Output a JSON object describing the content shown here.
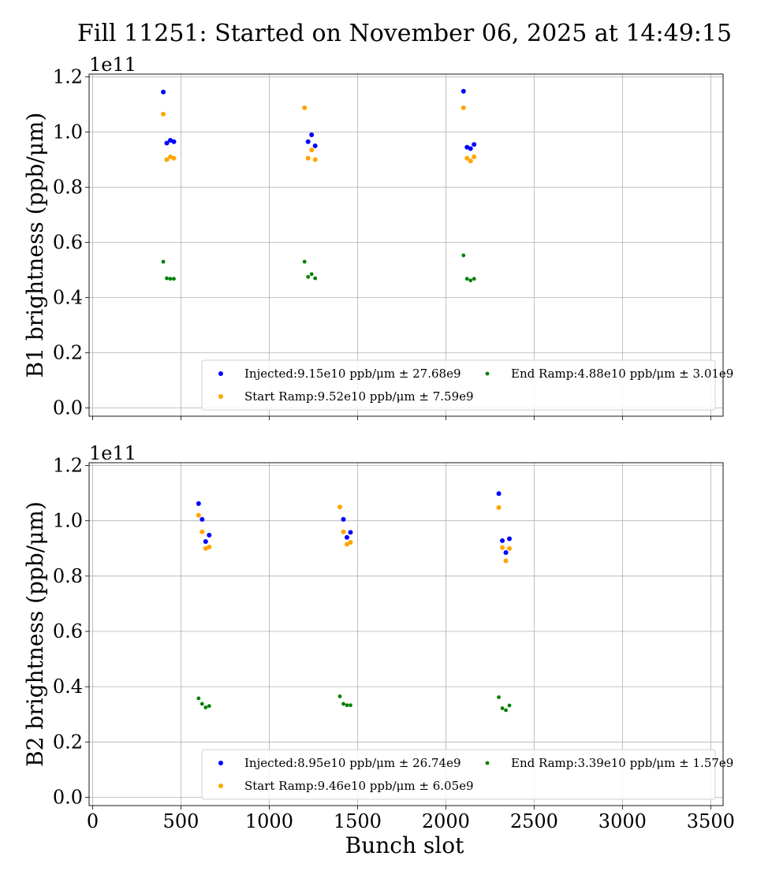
{
  "title": "Fill 11251: Started on November 06, 2025 at 14:49:15",
  "xlabel": "Bunch slot",
  "colors": {
    "injected": "#0000ff",
    "start_ramp": "#ffa500",
    "end_ramp": "#008000",
    "grid": "#b0b0b0"
  },
  "chart_data": [
    {
      "type": "scatter",
      "ylabel": "B1 brightness (ppb/μm)",
      "exponent_label": "1e11",
      "xlim": [
        -20,
        3570
      ],
      "ylim": [
        -3000000000.0,
        121000000000.0
      ],
      "xticks": [
        0,
        500,
        1000,
        1500,
        2000,
        2500,
        3000,
        3500
      ],
      "yticks": [
        0,
        20000000000.0,
        40000000000.0,
        60000000000.0,
        80000000000.0,
        100000000000.0,
        120000000000.0
      ],
      "ytick_labels": [
        "0.0",
        "0.2",
        "0.4",
        "0.6",
        "0.8",
        "1.0",
        "1.2"
      ],
      "grid": true,
      "legend_position": "lower-right",
      "series": [
        {
          "name": "Injected:9.15e10 ppb/μm ± 27.68e9",
          "color_key": "injected",
          "x": [
            400,
            420,
            440,
            460,
            1220,
            1240,
            1260,
            2100,
            2120,
            2140,
            2160
          ],
          "y": [
            114500000000.0,
            96000000000.0,
            97000000000.0,
            96500000000.0,
            96500000000.0,
            99000000000.0,
            95000000000.0,
            114800000000.0,
            94500000000.0,
            94000000000.0,
            95500000000.0
          ]
        },
        {
          "name": "Start Ramp:9.52e10 ppb/μm ± 7.59e9",
          "color_key": "start_ramp",
          "x": [
            400,
            420,
            440,
            460,
            1200,
            1220,
            1240,
            1260,
            2100,
            2120,
            2140,
            2160
          ],
          "y": [
            106500000000.0,
            90000000000.0,
            91000000000.0,
            90500000000.0,
            108800000000.0,
            90500000000.0,
            93500000000.0,
            90000000000.0,
            108800000000.0,
            90500000000.0,
            89500000000.0,
            91000000000.0
          ]
        },
        {
          "name": "End Ramp:4.88e10 ppb/μm ± 3.01e9",
          "color_key": "end_ramp",
          "x": [
            400,
            420,
            440,
            460,
            1200,
            1220,
            1240,
            1260,
            2100,
            2120,
            2140,
            2160
          ],
          "y": [
            53000000000.0,
            47000000000.0,
            46800000000.0,
            46800000000.0,
            53000000000.0,
            47500000000.0,
            48500000000.0,
            47000000000.0,
            55300000000.0,
            46800000000.0,
            46200000000.0,
            46800000000.0
          ]
        }
      ]
    },
    {
      "type": "scatter",
      "ylabel": "B2 brightness (ppb/μm)",
      "exponent_label": "1e11",
      "xlim": [
        -20,
        3570
      ],
      "ylim": [
        -3000000000.0,
        121000000000.0
      ],
      "xticks": [
        0,
        500,
        1000,
        1500,
        2000,
        2500,
        3000,
        3500
      ],
      "xtick_labels": [
        "0",
        "500",
        "1000",
        "1500",
        "2000",
        "2500",
        "3000",
        "3500"
      ],
      "yticks": [
        0,
        20000000000.0,
        40000000000.0,
        60000000000.0,
        80000000000.0,
        100000000000.0,
        120000000000.0
      ],
      "ytick_labels": [
        "0.0",
        "0.2",
        "0.4",
        "0.6",
        "0.8",
        "1.0",
        "1.2"
      ],
      "grid": true,
      "legend_position": "lower-right",
      "series": [
        {
          "name": "Injected:8.95e10 ppb/μm ± 26.74e9",
          "color_key": "injected",
          "x": [
            600,
            620,
            640,
            660,
            1420,
            1440,
            1460,
            2300,
            2320,
            2340,
            2360
          ],
          "y": [
            106200000000.0,
            100500000000.0,
            92500000000.0,
            94800000000.0,
            100500000000.0,
            94000000000.0,
            95800000000.0,
            109800000000.0,
            92800000000.0,
            88500000000.0,
            93500000000.0
          ]
        },
        {
          "name": "Start Ramp:9.46e10 ppb/μm ± 6.05e9",
          "color_key": "start_ramp",
          "x": [
            600,
            620,
            640,
            660,
            1400,
            1420,
            1440,
            1460,
            2300,
            2320,
            2340,
            2360
          ],
          "y": [
            102000000000.0,
            96000000000.0,
            90000000000.0,
            90500000000.0,
            105000000000.0,
            96000000000.0,
            91500000000.0,
            92200000000.0,
            104800000000.0,
            90300000000.0,
            85500000000.0,
            90000000000.0
          ]
        },
        {
          "name": "End Ramp:3.39e10 ppb/μm ± 1.57e9",
          "color_key": "end_ramp",
          "x": [
            600,
            620,
            640,
            660,
            1400,
            1420,
            1440,
            1460,
            2300,
            2320,
            2340,
            2360
          ],
          "y": [
            35800000000.0,
            33800000000.0,
            32500000000.0,
            33000000000.0,
            36500000000.0,
            33800000000.0,
            33300000000.0,
            33300000000.0,
            36200000000.0,
            32200000000.0,
            31500000000.0,
            33200000000.0
          ]
        }
      ]
    }
  ]
}
